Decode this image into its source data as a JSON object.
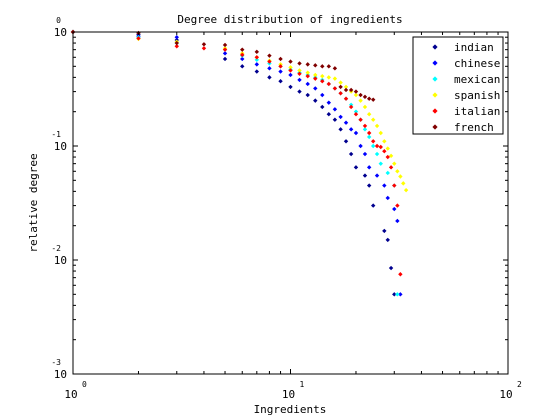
{
  "chart_data": {
    "type": "scatter",
    "title": "Degree distribution of ingredients",
    "xlabel": "Ingredients",
    "ylabel": "relative degree",
    "xscale": "log",
    "yscale": "log",
    "xlim": [
      1,
      100
    ],
    "ylim": [
      0.001,
      1
    ],
    "x_ticks": [
      {
        "value": 1,
        "base": "10",
        "exp": "0"
      },
      {
        "value": 10,
        "base": "10",
        "exp": "1"
      },
      {
        "value": 100,
        "base": "10",
        "exp": "2"
      }
    ],
    "y_ticks": [
      {
        "value": 0.001,
        "base": "10",
        "exp": "-3"
      },
      {
        "value": 0.01,
        "base": "10",
        "exp": "-2"
      },
      {
        "value": 0.1,
        "base": "10",
        "exp": "-1"
      },
      {
        "value": 1,
        "base": "10",
        "exp": "0"
      }
    ],
    "grid": false,
    "legend_position": "top-right",
    "series": [
      {
        "name": "indian",
        "color": "#00008f",
        "points": [
          [
            1,
            1
          ],
          [
            2,
            0.95
          ],
          [
            3,
            0.85
          ],
          [
            5,
            0.58
          ],
          [
            6,
            0.5
          ],
          [
            7,
            0.45
          ],
          [
            8,
            0.4
          ],
          [
            9,
            0.37
          ],
          [
            10,
            0.33
          ],
          [
            11,
            0.3
          ],
          [
            12,
            0.28
          ],
          [
            13,
            0.25
          ],
          [
            14,
            0.22
          ],
          [
            15,
            0.19
          ],
          [
            16,
            0.17
          ],
          [
            17,
            0.14
          ],
          [
            18,
            0.11
          ],
          [
            19,
            0.085
          ],
          [
            20,
            0.065
          ],
          [
            22,
            0.055
          ],
          [
            23,
            0.045
          ],
          [
            24,
            0.03
          ],
          [
            27,
            0.018
          ],
          [
            28,
            0.015
          ],
          [
            29,
            0.0085
          ],
          [
            30,
            0.005
          ]
        ]
      },
      {
        "name": "chinese",
        "color": "#0000ff",
        "points": [
          [
            1,
            1
          ],
          [
            2,
            0.92
          ],
          [
            3,
            0.9
          ],
          [
            5,
            0.65
          ],
          [
            6,
            0.58
          ],
          [
            7,
            0.52
          ],
          [
            8,
            0.48
          ],
          [
            9,
            0.45
          ],
          [
            10,
            0.42
          ],
          [
            11,
            0.38
          ],
          [
            12,
            0.35
          ],
          [
            13,
            0.32
          ],
          [
            14,
            0.28
          ],
          [
            15,
            0.24
          ],
          [
            16,
            0.21
          ],
          [
            17,
            0.18
          ],
          [
            18,
            0.16
          ],
          [
            19,
            0.14
          ],
          [
            20,
            0.13
          ],
          [
            21,
            0.1
          ],
          [
            22,
            0.085
          ],
          [
            23,
            0.065
          ],
          [
            25,
            0.055
          ],
          [
            27,
            0.045
          ],
          [
            28,
            0.035
          ],
          [
            30,
            0.028
          ],
          [
            31,
            0.022
          ],
          [
            32,
            0.005
          ]
        ]
      },
      {
        "name": "mexican",
        "color": "#00ffff",
        "points": [
          [
            1,
            1
          ],
          [
            2,
            0.9
          ],
          [
            3,
            0.8
          ],
          [
            5,
            0.7
          ],
          [
            6,
            0.62
          ],
          [
            7,
            0.57
          ],
          [
            8,
            0.53
          ],
          [
            9,
            0.5
          ],
          [
            10,
            0.47
          ],
          [
            11,
            0.44
          ],
          [
            12,
            0.42
          ],
          [
            13,
            0.4
          ],
          [
            14,
            0.38
          ],
          [
            15,
            0.35
          ],
          [
            16,
            0.32
          ],
          [
            17,
            0.29
          ],
          [
            18,
            0.26
          ],
          [
            19,
            0.23
          ],
          [
            20,
            0.2
          ],
          [
            21,
            0.17
          ],
          [
            22,
            0.14
          ],
          [
            23,
            0.12
          ],
          [
            24,
            0.1
          ],
          [
            25,
            0.085
          ],
          [
            26,
            0.07
          ],
          [
            28,
            0.058
          ],
          [
            30,
            0.045
          ],
          [
            31,
            0.005
          ]
        ]
      },
      {
        "name": "spanish",
        "color": "#ffff00",
        "points": [
          [
            1,
            1
          ],
          [
            2,
            0.87
          ],
          [
            3,
            0.82
          ],
          [
            5,
            0.72
          ],
          [
            6,
            0.65
          ],
          [
            7,
            0.6
          ],
          [
            8,
            0.56
          ],
          [
            9,
            0.52
          ],
          [
            10,
            0.49
          ],
          [
            11,
            0.46
          ],
          [
            12,
            0.44
          ],
          [
            13,
            0.42
          ],
          [
            14,
            0.41
          ],
          [
            15,
            0.4
          ],
          [
            16,
            0.39
          ],
          [
            17,
            0.36
          ],
          [
            18,
            0.33
          ],
          [
            19,
            0.3
          ],
          [
            20,
            0.28
          ],
          [
            21,
            0.25
          ],
          [
            22,
            0.22
          ],
          [
            23,
            0.19
          ],
          [
            24,
            0.17
          ],
          [
            25,
            0.15
          ],
          [
            26,
            0.13
          ],
          [
            27,
            0.11
          ],
          [
            28,
            0.095
          ],
          [
            29,
            0.082
          ],
          [
            30,
            0.07
          ],
          [
            31,
            0.06
          ],
          [
            32,
            0.054
          ],
          [
            33,
            0.047
          ],
          [
            34,
            0.041
          ]
        ]
      },
      {
        "name": "italian",
        "color": "#ff0000",
        "points": [
          [
            1,
            1
          ],
          [
            2,
            0.88
          ],
          [
            3,
            0.75
          ],
          [
            4,
            0.72
          ],
          [
            5,
            0.7
          ],
          [
            6,
            0.63
          ],
          [
            7,
            0.6
          ],
          [
            8,
            0.55
          ],
          [
            9,
            0.5
          ],
          [
            10,
            0.46
          ],
          [
            11,
            0.43
          ],
          [
            12,
            0.41
          ],
          [
            13,
            0.39
          ],
          [
            14,
            0.37
          ],
          [
            15,
            0.35
          ],
          [
            16,
            0.32
          ],
          [
            17,
            0.29
          ],
          [
            18,
            0.26
          ],
          [
            19,
            0.22
          ],
          [
            20,
            0.19
          ],
          [
            21,
            0.17
          ],
          [
            22,
            0.15
          ],
          [
            23,
            0.13
          ],
          [
            24,
            0.11
          ],
          [
            25,
            0.1
          ],
          [
            26,
            0.098
          ],
          [
            27,
            0.09
          ],
          [
            28,
            0.08
          ],
          [
            29,
            0.065
          ],
          [
            30,
            0.045
          ],
          [
            31,
            0.03
          ],
          [
            32,
            0.0075
          ]
        ]
      },
      {
        "name": "french",
        "color": "#800000",
        "points": [
          [
            1,
            1
          ],
          [
            2,
            0.98
          ],
          [
            3,
            0.8
          ],
          [
            4,
            0.78
          ],
          [
            5,
            0.77
          ],
          [
            6,
            0.7
          ],
          [
            7,
            0.67
          ],
          [
            8,
            0.62
          ],
          [
            9,
            0.58
          ],
          [
            10,
            0.55
          ],
          [
            11,
            0.53
          ],
          [
            12,
            0.52
          ],
          [
            13,
            0.51
          ],
          [
            14,
            0.5
          ],
          [
            15,
            0.5
          ],
          [
            16,
            0.48
          ],
          [
            17,
            0.33
          ],
          [
            18,
            0.31
          ],
          [
            19,
            0.31
          ],
          [
            20,
            0.3
          ],
          [
            21,
            0.28
          ],
          [
            22,
            0.27
          ],
          [
            23,
            0.26
          ],
          [
            24,
            0.255
          ]
        ]
      }
    ]
  }
}
